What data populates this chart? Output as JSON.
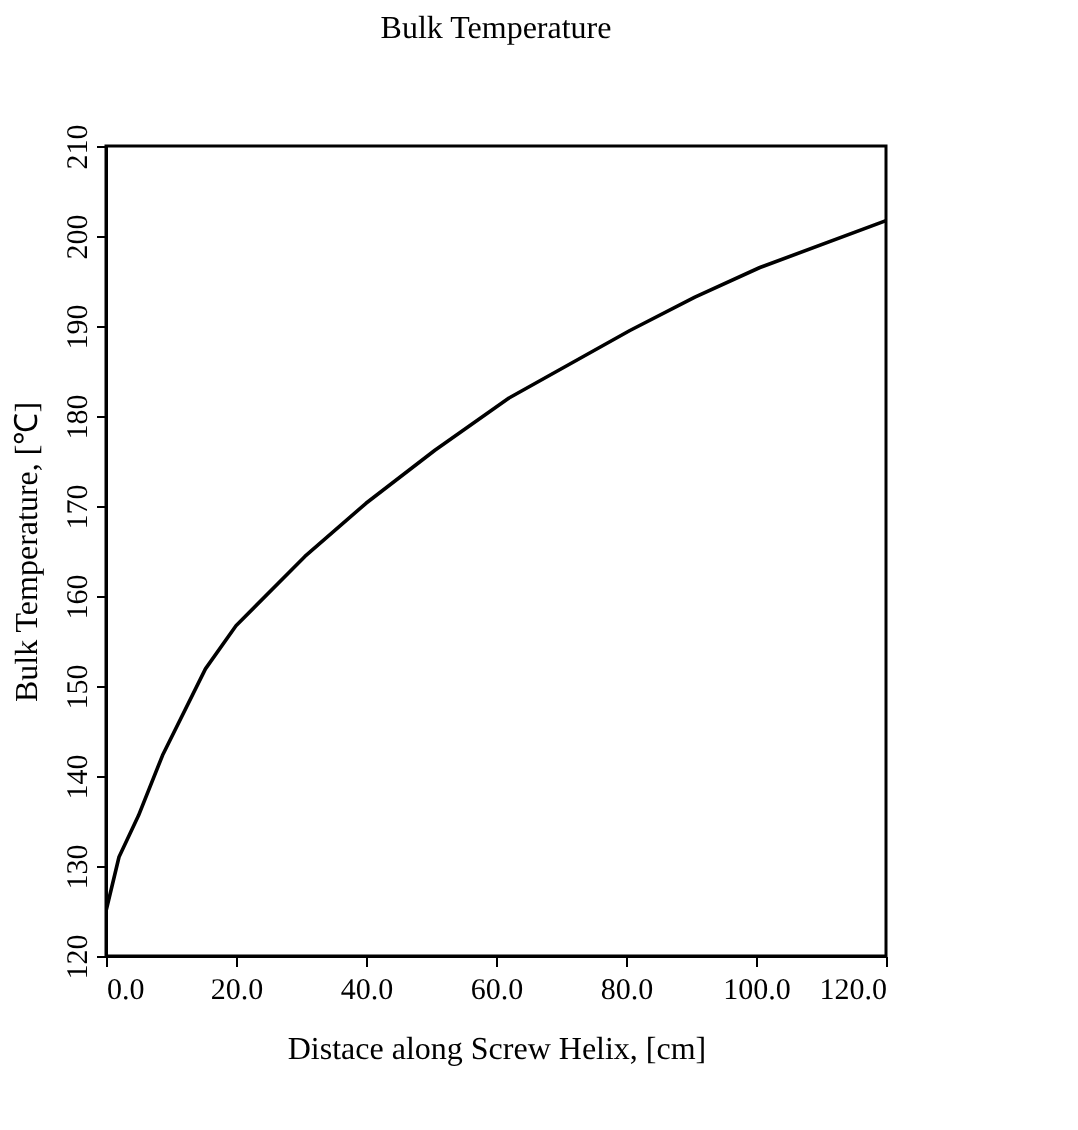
{
  "chart_data": {
    "type": "line",
    "title": "Bulk Temperature",
    "xlabel": "Distace along Screw Helix, [cm]",
    "ylabel": "Bulk Temperature, [℃]",
    "x": [
      0,
      2,
      5,
      8.7,
      15.3,
      20,
      30.6,
      40,
      50.6,
      62,
      80.6,
      90.6,
      100.6,
      120
    ],
    "series": [
      {
        "color": "#000000",
        "values": [
          125,
          131,
          135.6,
          142.3,
          151.9,
          156.7,
          164.4,
          170.3,
          176.2,
          182,
          189.5,
          193.2,
          196.5,
          201.7
        ]
      }
    ],
    "xlim": [
      0,
      120
    ],
    "ylim": [
      120,
      210
    ],
    "xticks": [
      {
        "value": 0,
        "label": "0.0"
      },
      {
        "value": 20,
        "label": "20.0"
      },
      {
        "value": 40,
        "label": "40.0"
      },
      {
        "value": 60,
        "label": "60.0"
      },
      {
        "value": 80,
        "label": "80.0"
      },
      {
        "value": 100,
        "label": "100.0"
      },
      {
        "value": 120,
        "label": "120.0"
      }
    ],
    "yticks": [
      120,
      130,
      140,
      150,
      160,
      170,
      180,
      190,
      200,
      210
    ],
    "grid": false,
    "legend": false,
    "marker": "none",
    "line_style": "solid"
  }
}
